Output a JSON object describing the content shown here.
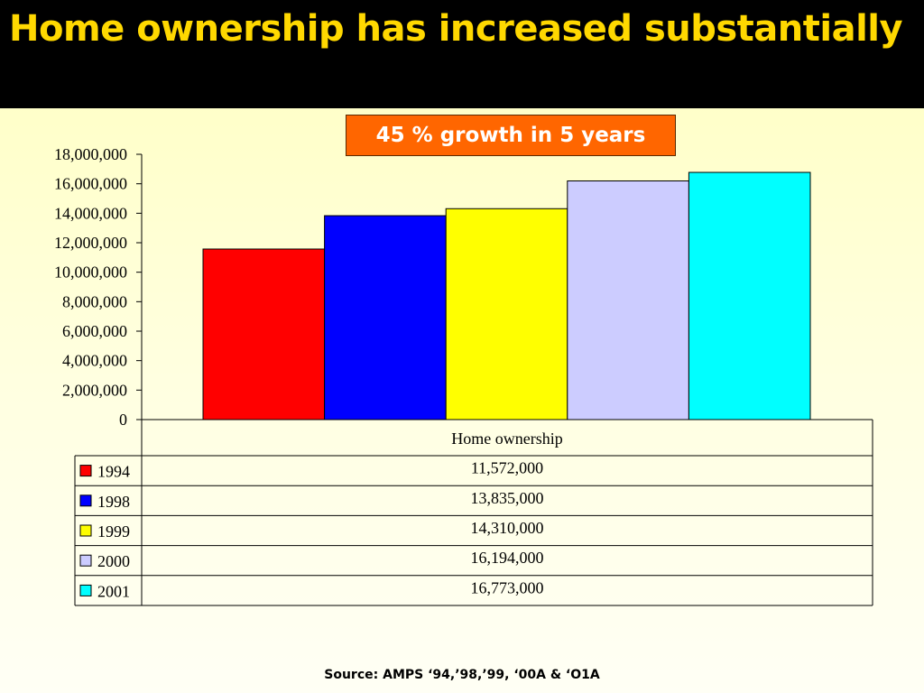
{
  "slide": {
    "title": "Home ownership has increased substantially",
    "callout": "45 % growth in 5 years",
    "source": "Source: AMPS ‘94,’98,’99,  ‘00A & ‘O1A"
  },
  "chart_data": {
    "type": "bar",
    "title": "",
    "xlabel": "",
    "ylabel": "",
    "categories": [
      "Home ownership"
    ],
    "series": [
      {
        "name": "1994",
        "values": [
          11572000
        ],
        "value_label": "11,572,000",
        "color": "#ff0000"
      },
      {
        "name": "1998",
        "values": [
          13835000
        ],
        "value_label": "13,835,000",
        "color": "#0000ff"
      },
      {
        "name": "1999",
        "values": [
          14310000
        ],
        "value_label": "14,310,000",
        "color": "#ffff00"
      },
      {
        "name": "2000",
        "values": [
          16194000
        ],
        "value_label": "16,194,000",
        "color": "#ccccff"
      },
      {
        "name": "2001",
        "values": [
          16773000
        ],
        "value_label": "16,773,000",
        "color": "#00ffff"
      }
    ],
    "ylim": [
      0,
      18000000
    ],
    "yticks": [
      0,
      2000000,
      4000000,
      6000000,
      8000000,
      10000000,
      12000000,
      14000000,
      16000000,
      18000000
    ],
    "ytick_labels": [
      "0",
      "2,000,000",
      "4,000,000",
      "6,000,000",
      "8,000,000",
      "10,000,000",
      "12,000,000",
      "14,000,000",
      "16,000,000",
      "18,000,000"
    ],
    "grid": false,
    "legend": "data-table-below"
  }
}
